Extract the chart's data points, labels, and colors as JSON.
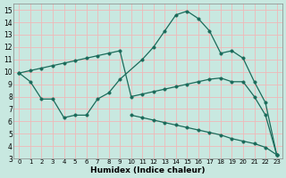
{
  "xlabel": "Humidex (Indice chaleur)",
  "bg_color": "#c8e8e0",
  "grid_color": "#f0b8b8",
  "line_color": "#1a6b5a",
  "xlim": [
    -0.5,
    23.5
  ],
  "ylim": [
    3,
    15.5
  ],
  "xticks": [
    0,
    1,
    2,
    3,
    4,
    5,
    6,
    7,
    8,
    9,
    10,
    11,
    12,
    13,
    14,
    15,
    16,
    17,
    18,
    19,
    20,
    21,
    22,
    23
  ],
  "yticks": [
    3,
    4,
    5,
    6,
    7,
    8,
    9,
    10,
    11,
    12,
    13,
    14,
    15
  ],
  "curve1_x": [
    0,
    1,
    2,
    3,
    4,
    5,
    6,
    7,
    8,
    9,
    11,
    12,
    13,
    14,
    15,
    16,
    17,
    18,
    19,
    20,
    21,
    22,
    23
  ],
  "curve1_y": [
    9.9,
    9.2,
    7.8,
    7.8,
    6.3,
    6.5,
    6.5,
    7.8,
    8.3,
    9.4,
    11.0,
    12.0,
    13.3,
    14.6,
    14.9,
    14.3,
    13.3,
    11.5,
    11.7,
    11.1,
    9.2,
    7.5,
    3.3
  ],
  "curve2_x": [
    0,
    1,
    2,
    3,
    4,
    5,
    6,
    7,
    8,
    9,
    10,
    11,
    12,
    13,
    14,
    15,
    16,
    17,
    18,
    19,
    20,
    21,
    22,
    23
  ],
  "curve2_y": [
    9.9,
    10.1,
    10.3,
    10.5,
    10.7,
    10.9,
    11.1,
    11.3,
    11.5,
    11.7,
    8.0,
    8.2,
    8.4,
    8.6,
    8.8,
    9.0,
    9.2,
    9.4,
    9.5,
    9.2,
    9.2,
    8.0,
    6.5,
    3.3
  ],
  "curve3_x": [
    10,
    11,
    12,
    13,
    14,
    15,
    16,
    17,
    18,
    19,
    20,
    21,
    22,
    23
  ],
  "curve3_y": [
    6.5,
    6.3,
    6.1,
    5.9,
    5.7,
    5.5,
    5.3,
    5.1,
    4.9,
    4.6,
    4.4,
    4.2,
    3.9,
    3.3
  ]
}
